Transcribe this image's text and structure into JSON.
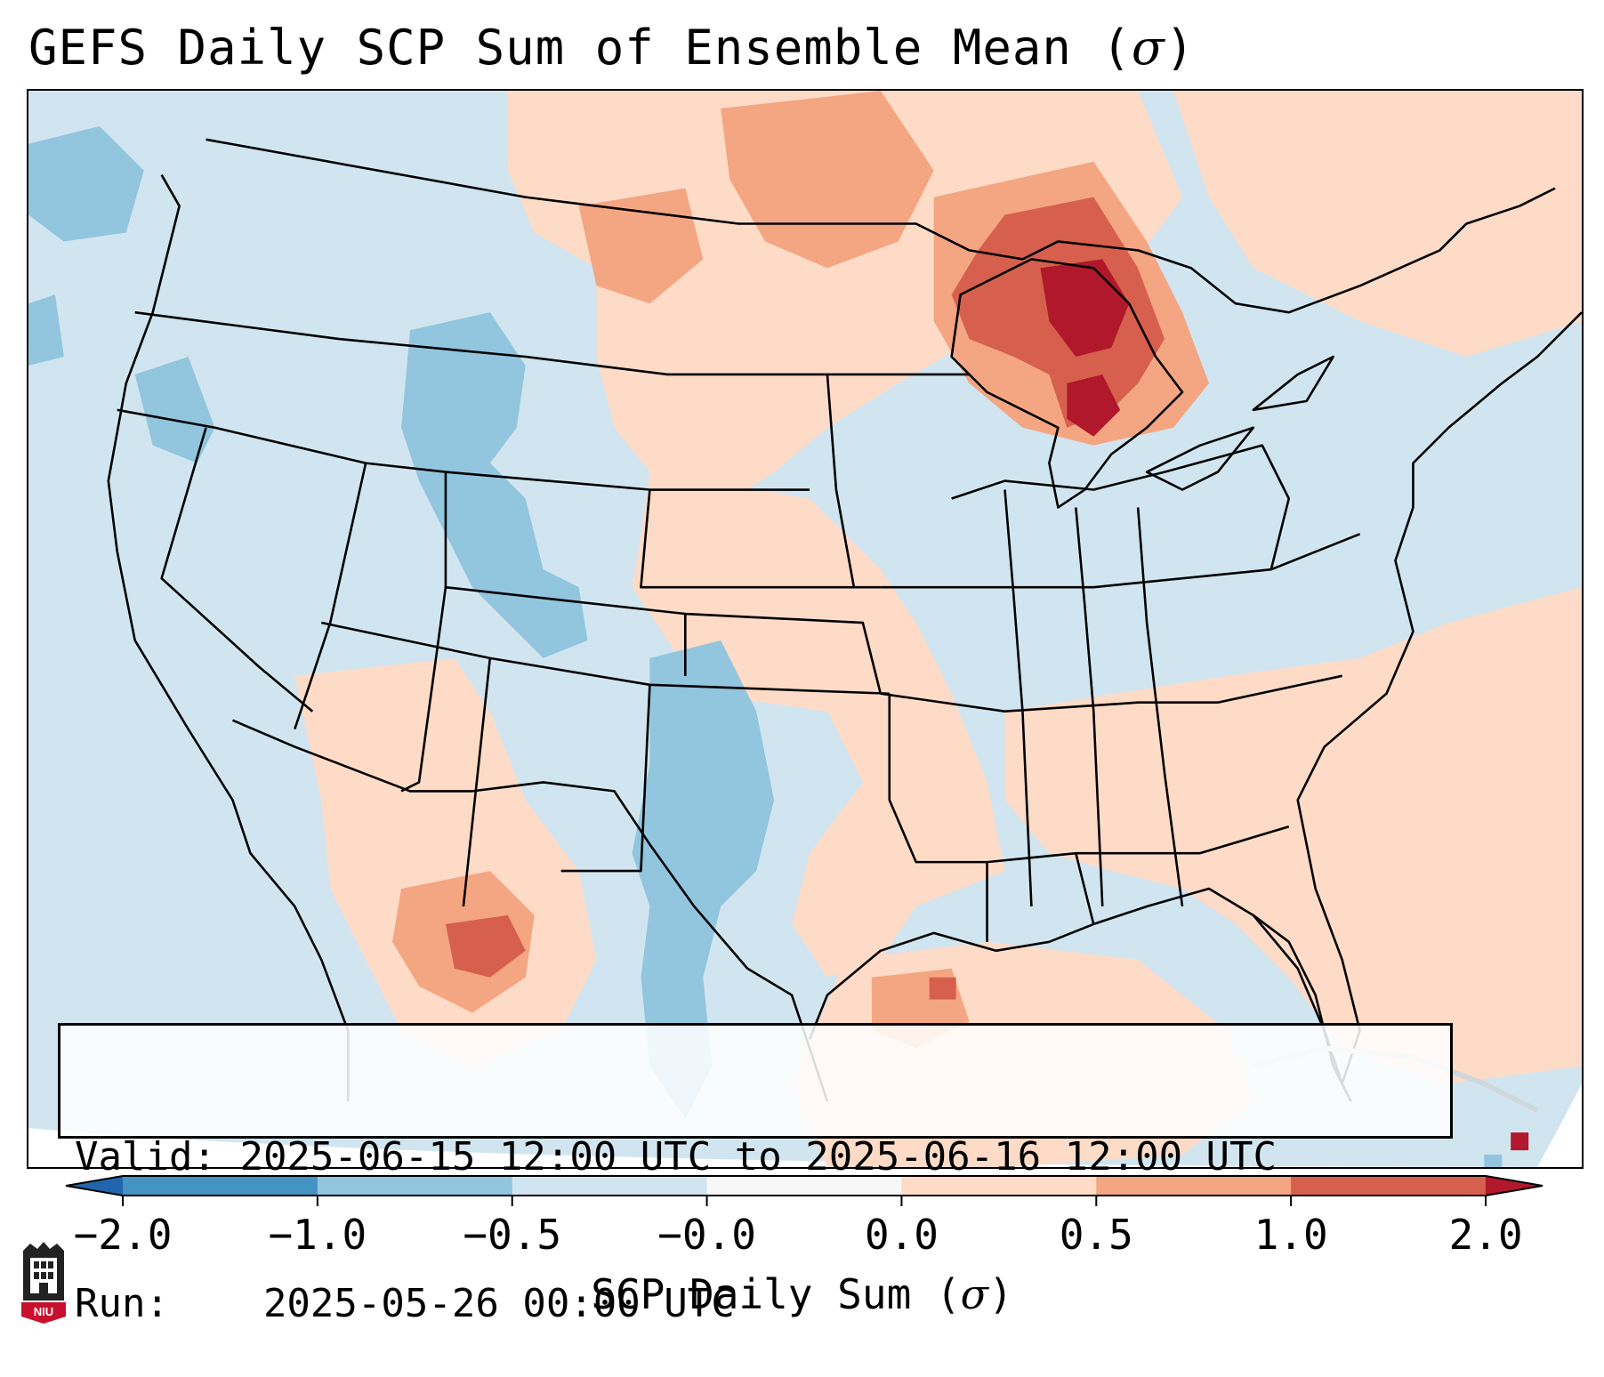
{
  "title": "GEFS Daily SCP Sum of Ensemble Mean (",
  "title_symbol": "σ",
  "title_end": ")",
  "info": {
    "valid_label": "Valid:",
    "valid_value": "2025-06-15 12:00 UTC to 2025-06-16 12:00 UTC",
    "run_label": "Run:",
    "run_value": "2025-05-26 00:00 UTC"
  },
  "colorbar": {
    "label": "SCP Daily Sum (",
    "label_symbol": "σ",
    "label_end": ")",
    "ticks": [
      "−2.0",
      "−1.0",
      "−0.5",
      "−0.0",
      "0.0",
      "0.5",
      "1.0",
      "2.0"
    ],
    "segment_colors": [
      "#4393c3",
      "#92c5de",
      "#d1e5f0",
      "#f7f7f7",
      "#fddbc7",
      "#f4a582",
      "#d6604d"
    ],
    "under_color": "#2166ac",
    "over_color": "#b2182b"
  },
  "logo": {
    "text": "NIU",
    "color": "#c8102e"
  },
  "map": {
    "ocean_color": "#d1e5f0",
    "region": "Continental United States"
  }
}
